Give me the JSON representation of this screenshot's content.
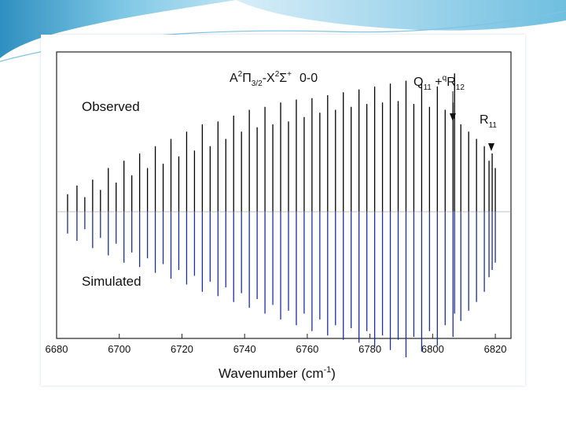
{
  "chart_data": {
    "type": "line",
    "title_parts": {
      "A": "A",
      "A_sup": "2",
      "Pi": "Π",
      "Pi_sub": "3/2",
      "dash": "-X",
      "X_sup": "2",
      "Sigma": "Σ",
      "Sigma_sup": "+",
      "band": "0-0"
    },
    "xlabel": "Wavenumber (cm",
    "xlabel_sup": "-1",
    "xlabel_close": ")",
    "xlim": [
      6680,
      6825
    ],
    "ylim": [
      -1.0,
      1.0
    ],
    "x_ticks": [
      "6680",
      "6700",
      "6720",
      "6740",
      "6760",
      "6780",
      "6800",
      "6820"
    ],
    "x_tick_values": [
      6680,
      6700,
      6720,
      6740,
      6760,
      6780,
      6800,
      6820
    ],
    "panels": {
      "observed_label": "Observed",
      "simulated_label": "Simulated"
    },
    "annotations": [
      {
        "id": "qr",
        "main": "Q",
        "sub1": "11",
        "mid": " +",
        "sup": "q",
        "main2": "R",
        "sub2": "12",
        "x": 6807
      },
      {
        "id": "r11",
        "main": "R",
        "sub1": "11",
        "x": 6819
      }
    ],
    "series": [
      {
        "name": "Observed",
        "color": "#000000",
        "x": [
          6683.5,
          6686.5,
          6689,
          6691.5,
          6694,
          6696.5,
          6699,
          6701.5,
          6704,
          6706.5,
          6709,
          6711.5,
          6714,
          6716.5,
          6719,
          6721.5,
          6724,
          6726.5,
          6729,
          6731.5,
          6734,
          6736.5,
          6739,
          6741.5,
          6744,
          6746.5,
          6749,
          6751.5,
          6754,
          6756.5,
          6759,
          6761.5,
          6764,
          6766.5,
          6769,
          6771.5,
          6774,
          6776.5,
          6779,
          6781.5,
          6784,
          6786.5,
          6789,
          6791.5,
          6794,
          6796.5,
          6799,
          6801.5,
          6804,
          6806.5,
          6807,
          6809,
          6811.5,
          6814,
          6816.5,
          6818,
          6819,
          6820
        ],
        "values": [
          0.12,
          0.18,
          0.1,
          0.22,
          0.15,
          0.3,
          0.2,
          0.35,
          0.25,
          0.4,
          0.3,
          0.45,
          0.33,
          0.5,
          0.38,
          0.55,
          0.42,
          0.6,
          0.45,
          0.62,
          0.5,
          0.66,
          0.55,
          0.7,
          0.58,
          0.72,
          0.6,
          0.75,
          0.62,
          0.77,
          0.65,
          0.78,
          0.68,
          0.8,
          0.7,
          0.82,
          0.72,
          0.84,
          0.74,
          0.86,
          0.75,
          0.88,
          0.76,
          0.9,
          0.74,
          0.88,
          0.72,
          0.86,
          0.7,
          0.75,
          0.95,
          0.6,
          0.55,
          0.5,
          0.45,
          0.35,
          0.4,
          0.3
        ]
      },
      {
        "name": "Simulated",
        "color": "#1c2ea0",
        "x": [
          6683.5,
          6686.5,
          6689,
          6691.5,
          6694,
          6696.5,
          6699,
          6701.5,
          6704,
          6706.5,
          6709,
          6711.5,
          6714,
          6716.5,
          6719,
          6721.5,
          6724,
          6726.5,
          6729,
          6731.5,
          6734,
          6736.5,
          6739,
          6741.5,
          6744,
          6746.5,
          6749,
          6751.5,
          6754,
          6756.5,
          6759,
          6761.5,
          6764,
          6766.5,
          6769,
          6771.5,
          6774,
          6776.5,
          6779,
          6781.5,
          6784,
          6786.5,
          6789,
          6791.5,
          6794,
          6796.5,
          6799,
          6801.5,
          6804,
          6806.5,
          6807,
          6809,
          6811.5,
          6814,
          6816.5,
          6818,
          6819,
          6820
        ],
        "values": [
          -0.15,
          -0.2,
          -0.12,
          -0.25,
          -0.18,
          -0.3,
          -0.22,
          -0.35,
          -0.28,
          -0.38,
          -0.32,
          -0.42,
          -0.36,
          -0.46,
          -0.4,
          -0.5,
          -0.44,
          -0.55,
          -0.48,
          -0.58,
          -0.52,
          -0.62,
          -0.56,
          -0.66,
          -0.6,
          -0.7,
          -0.64,
          -0.74,
          -0.68,
          -0.78,
          -0.7,
          -0.82,
          -0.74,
          -0.85,
          -0.78,
          -0.88,
          -0.8,
          -0.9,
          -0.82,
          -0.93,
          -0.85,
          -0.95,
          -0.88,
          -1.0,
          -0.86,
          -0.96,
          -0.82,
          -0.92,
          -0.78,
          -0.86,
          -0.7,
          -0.75,
          -0.68,
          -0.62,
          -0.55,
          -0.45,
          -0.4,
          -0.35
        ]
      }
    ]
  }
}
